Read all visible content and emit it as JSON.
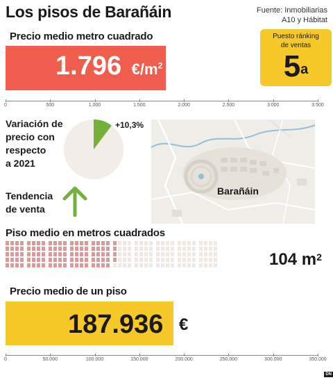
{
  "header": {
    "title": "Los pisos de Barañáin",
    "source_line1": "Fuente: Inmobiliarias",
    "source_line2": "A10 y Hábitat"
  },
  "price_m2": {
    "label": "Precio medio metro cuadrado",
    "value_text": "1.796",
    "unit": "€/m",
    "unit_exp": "2"
  },
  "ranking": {
    "label_line1": "Puesto ránking",
    "label_line2": "de ventas",
    "value": "5",
    "suffix": "a"
  },
  "variation": {
    "label_line1": "Variación de",
    "label_line2": "precio con",
    "label_line3": "respecto",
    "label_line4": "a 2021",
    "value_text": "+10,3%"
  },
  "trend": {
    "label_line1": "Tendencia",
    "label_line2": "de venta",
    "icon": "arrow-up-icon"
  },
  "map": {
    "town_label": "Barañáin"
  },
  "surface": {
    "label": "Piso medio en metros cuadrados",
    "value_text": "104 m",
    "value_exp": "2"
  },
  "price_flat": {
    "label": "Precio medio de un piso",
    "value_text": "187.936",
    "unit": "€"
  },
  "colors": {
    "red": "#ef5d4c",
    "yellow": "#f7c82a",
    "green": "#73b13a",
    "square_filled": "#d99a98",
    "square_empty": "#f2e8e2"
  },
  "chart_data": [
    {
      "type": "bar",
      "title": "Precio medio metro cuadrado",
      "categories": [
        ""
      ],
      "values": [
        1796
      ],
      "xlim": [
        0,
        3500
      ],
      "ticks": [
        0,
        500,
        1000,
        1500,
        2000,
        2500,
        3000,
        3500
      ],
      "tick_labels": [
        "0",
        "500",
        "1.000",
        "1.500",
        "2.000",
        "2.500",
        "3.000",
        "3.500"
      ]
    },
    {
      "type": "pie",
      "title": "Variación de precio con respecto a 2021",
      "values": [
        10.3,
        89.7
      ],
      "labels": [
        "+10,3%",
        ""
      ]
    },
    {
      "type": "waffle",
      "title": "Piso medio en metros cuadrados",
      "filled": 104,
      "total": 200
    },
    {
      "type": "bar",
      "title": "Precio medio de un piso",
      "categories": [
        ""
      ],
      "values": [
        187936
      ],
      "xlim": [
        0,
        350000
      ],
      "ticks": [
        0,
        50000,
        100000,
        150000,
        200000,
        250000,
        300000,
        350000
      ],
      "tick_labels": [
        "0",
        "50.000",
        "100.000",
        "150.000",
        "200.000",
        "250.000",
        "300.000",
        "350.000"
      ]
    }
  ]
}
